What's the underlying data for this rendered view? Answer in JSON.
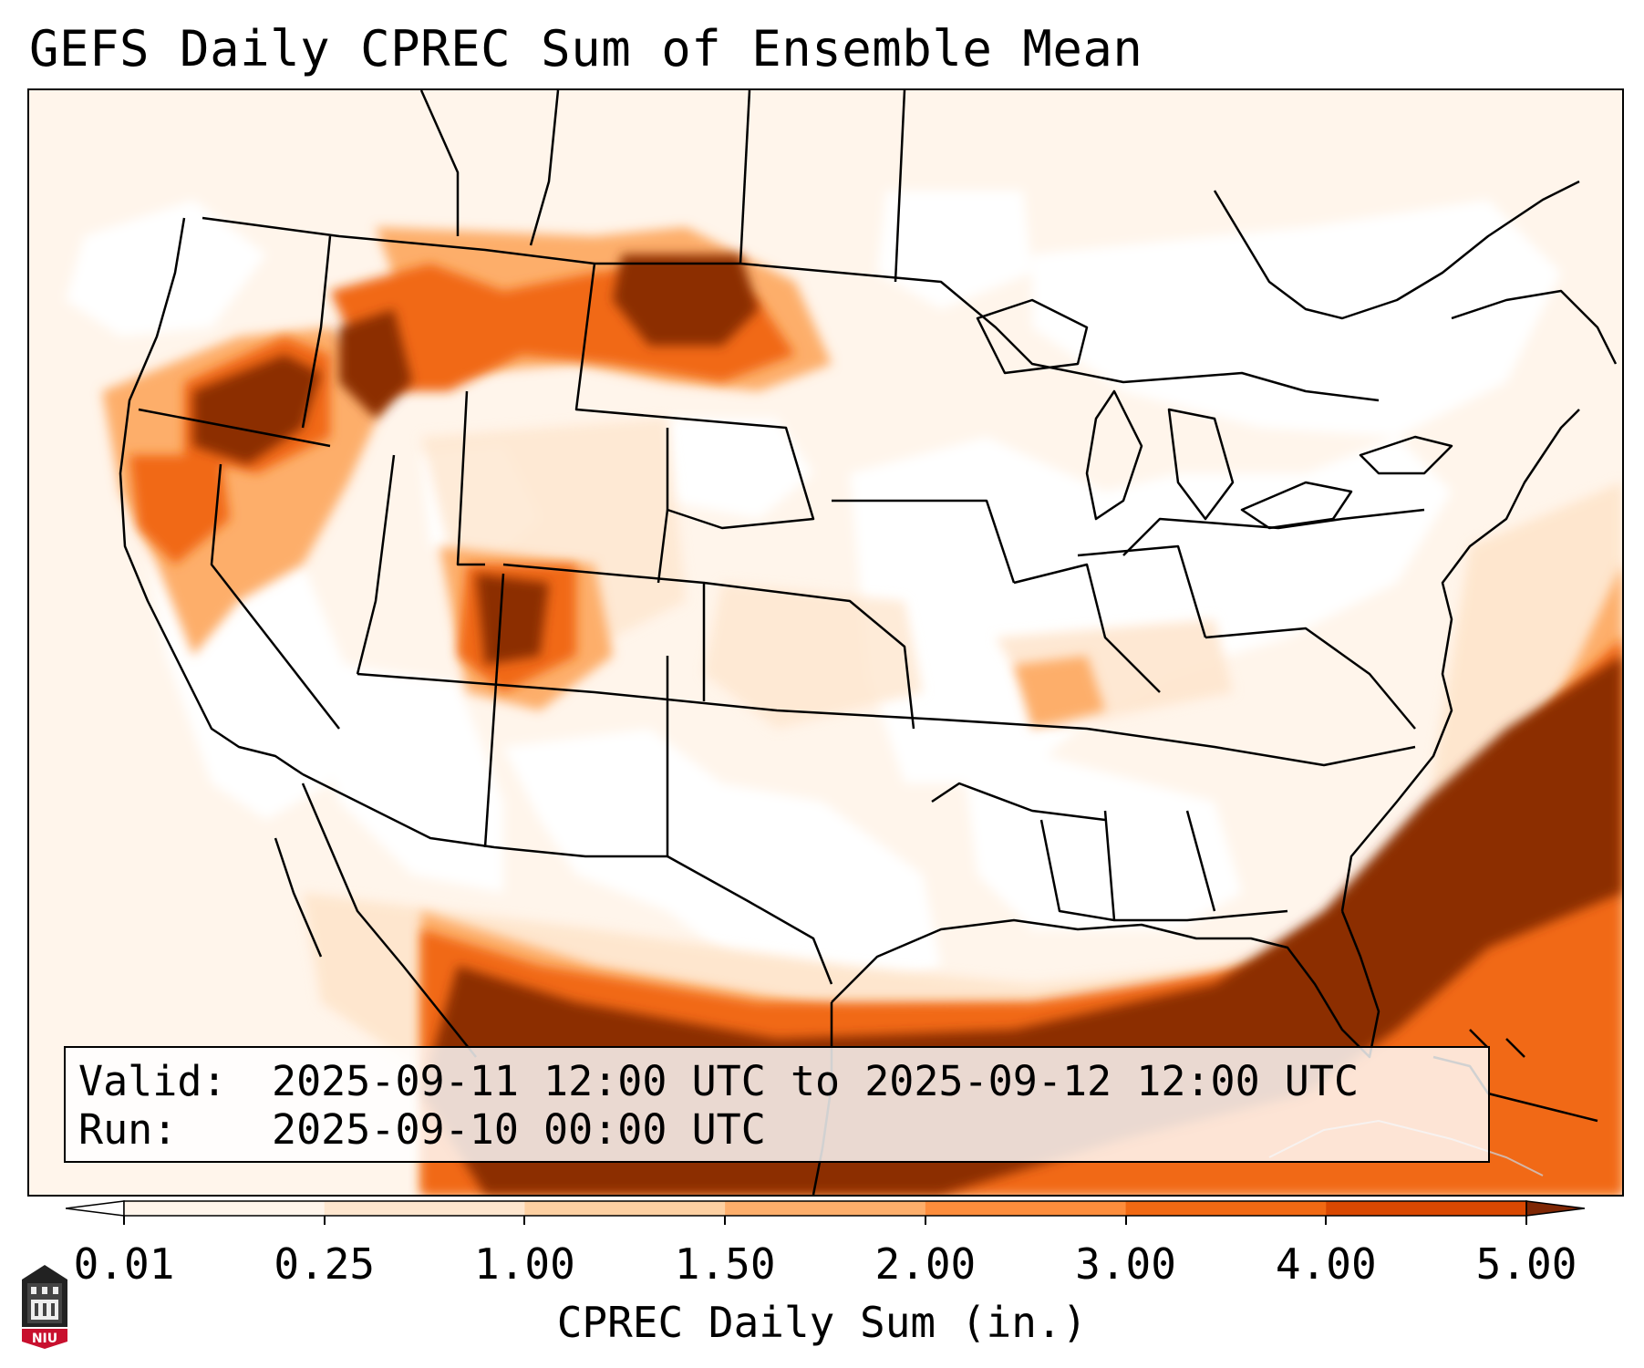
{
  "title": "GEFS Daily CPREC Sum of Ensemble Mean",
  "info": {
    "valid_label": "Valid:",
    "valid_value": "2025-09-11 12:00 UTC to 2025-09-12 12:00 UTC",
    "run_label": "Run:",
    "run_value": "2025-09-10 00:00 UTC"
  },
  "colorbar": {
    "label": "CPREC Daily Sum (in.)",
    "ticks": [
      "0.01",
      "0.25",
      "1.00",
      "1.50",
      "2.00",
      "3.00",
      "4.00",
      "5.00"
    ],
    "colors": [
      "#fff5eb",
      "#fee6ce",
      "#fdd0a2",
      "#fdae6b",
      "#fd8d3c",
      "#f16913",
      "#d94801",
      "#8c2d04"
    ],
    "over_color": "#7f2704",
    "under_color": "#ffffff"
  },
  "logo": {
    "name": "NIU",
    "text": "NIU",
    "color": "#c8102e"
  }
}
